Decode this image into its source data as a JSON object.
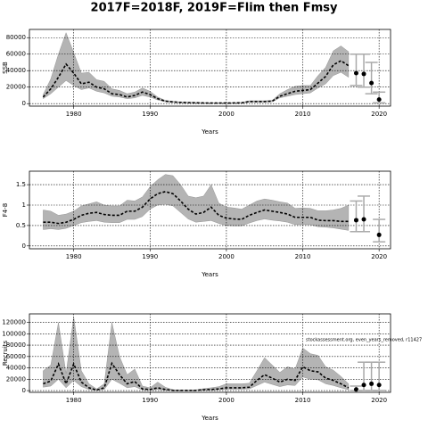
{
  "title": "2017F=2018F, 2019F=Flim then Fmsy",
  "chart_data": [
    {
      "type": "line",
      "ylabel": "SSB",
      "xlabel": "Years",
      "x": [
        1976,
        1977,
        1978,
        1979,
        1980,
        1981,
        1982,
        1983,
        1984,
        1985,
        1986,
        1987,
        1988,
        1989,
        1990,
        1991,
        1992,
        1993,
        1994,
        1995,
        1996,
        1997,
        1998,
        1999,
        2000,
        2001,
        2002,
        2003,
        2004,
        2005,
        2006,
        2007,
        2008,
        2009,
        2010,
        2011,
        2012,
        2013,
        2014,
        2015,
        2016
      ],
      "values": [
        8000,
        18000,
        32000,
        48000,
        37000,
        24000,
        26000,
        20000,
        18000,
        12000,
        11000,
        8000,
        10000,
        14000,
        11000,
        6000,
        3000,
        2000,
        1500,
        1200,
        1000,
        800,
        700,
        700,
        700,
        800,
        1000,
        2500,
        2500,
        2500,
        3000,
        9000,
        12000,
        15000,
        16000,
        17000,
        25000,
        33000,
        47000,
        52000,
        46000
      ],
      "lower": [
        6000,
        12000,
        20000,
        28000,
        22000,
        17000,
        19000,
        15000,
        13000,
        9000,
        8000,
        6000,
        7000,
        10000,
        8000,
        4500,
        2200,
        1500,
        1100,
        900,
        700,
        600,
        500,
        500,
        500,
        600,
        700,
        1800,
        1800,
        1800,
        2200,
        7000,
        9000,
        11000,
        12000,
        13000,
        19000,
        24000,
        34000,
        38000,
        32000
      ],
      "upper": [
        11000,
        30000,
        60000,
        86000,
        62000,
        37000,
        38000,
        29000,
        27000,
        18000,
        16000,
        12000,
        14000,
        19000,
        15000,
        8000,
        4000,
        2800,
        2000,
        1700,
        1400,
        1200,
        1000,
        1000,
        1000,
        1200,
        1400,
        3500,
        3500,
        3500,
        4000,
        12000,
        17000,
        21000,
        22000,
        22000,
        34000,
        44000,
        64000,
        70000,
        63000
      ],
      "forecast": {
        "x": [
          2017,
          2018,
          2019,
          2020
        ],
        "values": [
          37000,
          36000,
          25000,
          5000
        ],
        "lower": [
          22000,
          20000,
          12000,
          1000
        ],
        "upper": [
          60000,
          60000,
          50000,
          14000
        ]
      },
      "xlim": [
        1974.2,
        2021.5
      ],
      "xticks": [
        1980,
        1990,
        2000,
        2010,
        2020
      ],
      "ylim": [
        -3000,
        90000
      ],
      "yticks": [
        0,
        20000,
        40000,
        60000,
        80000
      ],
      "grid": true
    },
    {
      "type": "line",
      "ylabel": "F4-8",
      "xlabel": "Years",
      "x": [
        1976,
        1977,
        1978,
        1979,
        1980,
        1981,
        1982,
        1983,
        1984,
        1985,
        1986,
        1987,
        1988,
        1989,
        1990,
        1991,
        1992,
        1993,
        1994,
        1995,
        1996,
        1997,
        1998,
        1999,
        2000,
        2001,
        2002,
        2003,
        2004,
        2005,
        2006,
        2007,
        2008,
        2009,
        2010,
        2011,
        2012,
        2013,
        2014,
        2015,
        2016
      ],
      "values": [
        0.58,
        0.58,
        0.55,
        0.58,
        0.65,
        0.75,
        0.8,
        0.82,
        0.77,
        0.75,
        0.75,
        0.85,
        0.85,
        0.95,
        1.15,
        1.28,
        1.33,
        1.28,
        1.1,
        0.9,
        0.78,
        0.82,
        0.95,
        0.75,
        0.68,
        0.66,
        0.65,
        0.75,
        0.82,
        0.88,
        0.85,
        0.82,
        0.78,
        0.7,
        0.7,
        0.7,
        0.63,
        0.62,
        0.62,
        0.6,
        0.6
      ],
      "lower": [
        0.4,
        0.42,
        0.4,
        0.43,
        0.5,
        0.57,
        0.6,
        0.62,
        0.58,
        0.57,
        0.57,
        0.65,
        0.65,
        0.72,
        0.9,
        1.0,
        1.02,
        0.98,
        0.82,
        0.66,
        0.58,
        0.6,
        0.62,
        0.55,
        0.5,
        0.49,
        0.49,
        0.56,
        0.62,
        0.66,
        0.63,
        0.61,
        0.58,
        0.52,
        0.52,
        0.52,
        0.47,
        0.46,
        0.44,
        0.41,
        0.38
      ],
      "upper": [
        0.88,
        0.85,
        0.75,
        0.78,
        0.85,
        0.98,
        1.03,
        1.08,
        1.0,
        0.98,
        0.98,
        1.12,
        1.1,
        1.2,
        1.45,
        1.62,
        1.75,
        1.72,
        1.5,
        1.22,
        1.18,
        1.22,
        1.5,
        1.05,
        0.95,
        0.93,
        0.9,
        1.0,
        1.1,
        1.15,
        1.12,
        1.08,
        1.05,
        0.92,
        0.93,
        0.92,
        0.86,
        0.86,
        0.88,
        0.92,
        1.0
      ],
      "forecast": {
        "x": [
          2017,
          2018,
          2019,
          2020
        ],
        "values": [
          0.63,
          0.65,
          null,
          0.27
        ],
        "lower": [
          0.35,
          0.35,
          null,
          0.1
        ],
        "upper": [
          1.1,
          1.22,
          null,
          0.65
        ]
      },
      "xlim": [
        1974.2,
        2021.5
      ],
      "xticks": [
        1980,
        1990,
        2000,
        2010,
        2020
      ],
      "ylim": [
        -0.07,
        1.83
      ],
      "yticks": [
        0,
        0.5,
        1,
        1.5
      ],
      "grid": true
    },
    {
      "type": "line",
      "ylabel": "Recruits",
      "xlabel": "Years",
      "annotation": "stockassessment.org, even_years_removed, r11427",
      "x": [
        1976,
        1977,
        1978,
        1979,
        1980,
        1981,
        1982,
        1983,
        1984,
        1985,
        1986,
        1987,
        1988,
        1989,
        1990,
        1991,
        1992,
        1993,
        1994,
        1995,
        1996,
        1997,
        1998,
        1999,
        2000,
        2001,
        2002,
        2003,
        2004,
        2005,
        2006,
        2007,
        2008,
        2009,
        2010,
        2011,
        2012,
        2013,
        2014,
        2015,
        2016
      ],
      "values": [
        12000,
        17000,
        47000,
        12000,
        47000,
        15000,
        5000,
        1000,
        5000,
        48000,
        28000,
        12000,
        16000,
        3000,
        2000,
        5000,
        2000,
        500,
        400,
        400,
        500,
        1500,
        2000,
        3000,
        5000,
        5000,
        5000,
        6000,
        18000,
        28000,
        22000,
        15000,
        20000,
        18000,
        42000,
        35000,
        33000,
        22000,
        18000,
        12000,
        5000
      ],
      "lower": [
        6000,
        8000,
        20000,
        5000,
        18000,
        7000,
        2000,
        400,
        2000,
        20000,
        13000,
        5000,
        7000,
        1200,
        800,
        2000,
        800,
        200,
        150,
        150,
        200,
        700,
        900,
        1500,
        2500,
        2500,
        2500,
        3000,
        9000,
        15000,
        11000,
        7000,
        10000,
        9000,
        24000,
        20000,
        19000,
        12000,
        9000,
        5000,
        1500
      ],
      "upper": [
        35000,
        45000,
        120000,
        30000,
        130000,
        35000,
        12000,
        3000,
        12000,
        120000,
        60000,
        28000,
        38000,
        8000,
        5000,
        15000,
        6000,
        1500,
        1000,
        1000,
        1200,
        3500,
        5000,
        7000,
        12000,
        12000,
        12000,
        13000,
        35000,
        58000,
        45000,
        32000,
        42000,
        38000,
        75000,
        65000,
        62000,
        42000,
        36000,
        25000,
        12000
      ],
      "forecast": {
        "x": [
          2017,
          2018,
          2019,
          2020
        ],
        "values": [
          2000,
          10000,
          12000,
          10000
        ],
        "lower": [
          200,
          200,
          200,
          200
        ],
        "upper": [
          8000,
          50000,
          50000,
          50000
        ]
      },
      "xlim": [
        1974.2,
        2021.5
      ],
      "xticks": [
        1980,
        1990,
        2000,
        2010,
        2020
      ],
      "ylim": [
        -3000,
        135000
      ],
      "yticks": [
        0,
        20000,
        40000,
        60000,
        80000,
        100000,
        120000
      ],
      "grid": true
    }
  ]
}
